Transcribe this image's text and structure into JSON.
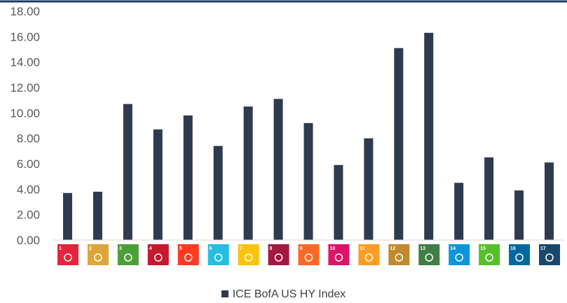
{
  "chart_data": {
    "type": "bar",
    "categories": [
      "1",
      "2",
      "3",
      "4",
      "5",
      "6",
      "7",
      "8",
      "9",
      "10",
      "11",
      "12",
      "13",
      "14",
      "15",
      "16",
      "17"
    ],
    "series": [
      {
        "name": "ICE BofA US HY Index",
        "values": [
          3.7,
          3.8,
          10.7,
          8.7,
          9.8,
          7.4,
          10.5,
          11.1,
          9.2,
          5.9,
          8.0,
          15.1,
          16.3,
          4.5,
          6.5,
          3.9,
          6.1
        ]
      }
    ],
    "ylim": [
      0,
      18
    ],
    "yticks": [
      "0.00",
      "2.00",
      "4.00",
      "6.00",
      "8.00",
      "10.00",
      "12.00",
      "14.00",
      "16.00",
      "18.00"
    ],
    "grid": false,
    "legend_position": "bottom",
    "bar_color": "#2e3a4e",
    "category_icons": [
      {
        "icon": "sdg-1-no-poverty-icon",
        "color": "#e5243b"
      },
      {
        "icon": "sdg-2-zero-hunger-icon",
        "color": "#dda63a"
      },
      {
        "icon": "sdg-3-good-health-icon",
        "color": "#4c9f38"
      },
      {
        "icon": "sdg-4-quality-education-icon",
        "color": "#c5192d"
      },
      {
        "icon": "sdg-5-gender-equality-icon",
        "color": "#ff3a21"
      },
      {
        "icon": "sdg-6-clean-water-icon",
        "color": "#26bde2"
      },
      {
        "icon": "sdg-7-clean-energy-icon",
        "color": "#fcc30b"
      },
      {
        "icon": "sdg-8-decent-work-icon",
        "color": "#a21942"
      },
      {
        "icon": "sdg-9-industry-innovation-icon",
        "color": "#fd6925"
      },
      {
        "icon": "sdg-10-reduced-inequalities-icon",
        "color": "#dd1367"
      },
      {
        "icon": "sdg-11-sustainable-cities-icon",
        "color": "#fd9d24"
      },
      {
        "icon": "sdg-12-responsible-consumption-icon",
        "color": "#bf8b2e"
      },
      {
        "icon": "sdg-13-climate-action-icon",
        "color": "#3f7e44"
      },
      {
        "icon": "sdg-14-life-below-water-icon",
        "color": "#0a97d9"
      },
      {
        "icon": "sdg-15-life-on-land-icon",
        "color": "#56c02b"
      },
      {
        "icon": "sdg-16-peace-justice-icon",
        "color": "#00689d"
      },
      {
        "icon": "sdg-17-partnerships-icon",
        "color": "#19486a"
      }
    ]
  }
}
